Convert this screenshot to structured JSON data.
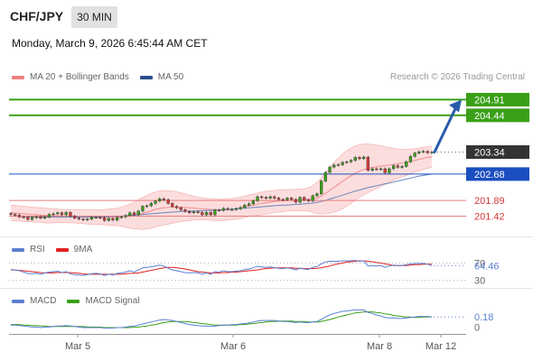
{
  "header": {
    "pair": "CHF/JPY",
    "timeframe": "30 MIN",
    "datetime": "Monday, March 9, 2026 6:45:44 AM CET",
    "copyright": "Research © 2026 Trading Central"
  },
  "legends": {
    "main": [
      {
        "label": "MA 20 + Bollinger Bands",
        "color": "#f08080"
      },
      {
        "label": "MA 50",
        "color": "#2a4d8c"
      }
    ],
    "rsi": [
      {
        "label": "RSI",
        "color": "#5b7fd1"
      },
      {
        "label": "9MA",
        "color": "#e02020"
      }
    ],
    "macd": [
      {
        "label": "MACD",
        "color": "#5b7fd1"
      },
      {
        "label": "MACD Signal",
        "color": "#3aa017"
      }
    ]
  },
  "colors": {
    "green": "#3aa017",
    "blue": "#1b4fc1",
    "red": "#d63a3a",
    "dark": "#333333",
    "bull": "#3aa017",
    "bear": "#d63a3a",
    "band": "#fbd7d7",
    "arrow": "#2a5cab"
  },
  "chart_data": [
    {
      "type": "candlestick",
      "title": "CHF/JPY 30 MIN",
      "x_ticks": [
        "Mar 5",
        "Mar 6",
        "Mar 8",
        "Mar 12"
      ],
      "ylim": [
        201.0,
        205.3
      ],
      "levels": [
        {
          "value": 204.91,
          "label": "204.91",
          "style": "green"
        },
        {
          "value": 204.44,
          "label": "204.44",
          "style": "green"
        },
        {
          "value": 203.34,
          "label": "203.34",
          "style": "dark"
        },
        {
          "value": 202.68,
          "label": "202.68",
          "style": "blue"
        },
        {
          "value": 201.89,
          "label": "201.89",
          "style": "red"
        },
        {
          "value": 201.42,
          "label": "201.42",
          "style": "red"
        }
      ],
      "closes": [
        201.47,
        201.45,
        201.4,
        201.39,
        201.32,
        201.38,
        201.4,
        201.36,
        201.4,
        201.47,
        201.49,
        201.52,
        201.46,
        201.53,
        201.42,
        201.36,
        201.33,
        201.31,
        201.33,
        201.38,
        201.38,
        201.37,
        201.29,
        201.35,
        201.3,
        201.38,
        201.4,
        201.44,
        201.52,
        201.46,
        201.57,
        201.71,
        201.73,
        201.8,
        201.87,
        201.94,
        201.91,
        201.8,
        201.71,
        201.67,
        201.61,
        201.56,
        201.52,
        201.55,
        201.53,
        201.46,
        201.53,
        201.46,
        201.6,
        201.59,
        201.65,
        201.62,
        201.62,
        201.64,
        201.68,
        201.75,
        201.79,
        201.88,
        202.0,
        201.98,
        201.96,
        202.0,
        201.96,
        201.92,
        201.91,
        201.96,
        201.92,
        201.84,
        201.98,
        201.91,
        201.88,
        202.03,
        202.09,
        202.47,
        202.73,
        202.89,
        202.95,
        202.96,
        203.03,
        203.05,
        203.09,
        203.18,
        203.14,
        203.19,
        202.79,
        202.84,
        202.82,
        202.84,
        202.72,
        202.84,
        202.93,
        202.88,
        202.91,
        203.05,
        203.21,
        203.31,
        203.35,
        203.36,
        203.32,
        203.34
      ],
      "ma20": [
        201.52,
        201.51,
        201.5,
        201.49,
        201.48,
        201.47,
        201.46,
        201.45,
        201.44,
        201.43,
        201.43,
        201.43,
        201.42,
        201.42,
        201.42,
        201.42,
        201.41,
        201.41,
        201.4,
        201.4,
        201.39,
        201.39,
        201.39,
        201.39,
        201.39,
        201.4,
        201.4,
        201.41,
        201.42,
        201.44,
        201.47,
        201.5,
        201.54,
        201.58,
        201.62,
        201.65,
        201.67,
        201.68,
        201.69,
        201.69,
        201.69,
        201.68,
        201.67,
        201.66,
        201.65,
        201.64,
        201.63,
        201.62,
        201.61,
        201.61,
        201.61,
        201.62,
        201.63,
        201.65,
        201.67,
        201.7,
        201.73,
        201.75,
        201.78,
        201.8,
        201.82,
        201.84,
        201.86,
        201.87,
        201.88,
        201.89,
        201.9,
        201.9,
        201.91,
        201.91,
        201.92,
        201.93,
        201.96,
        202.02,
        202.1,
        202.19,
        202.28,
        202.37,
        202.46,
        202.55,
        202.63,
        202.71,
        202.77,
        202.82,
        202.85,
        202.88,
        202.9,
        202.92,
        202.93,
        202.95,
        202.97,
        202.99,
        203.01,
        203.03,
        203.06,
        203.09,
        203.12,
        203.15,
        203.18,
        203.2
      ],
      "bb_upper": [
        201.75,
        201.74,
        201.73,
        201.72,
        201.7,
        201.69,
        201.68,
        201.67,
        201.66,
        201.65,
        201.64,
        201.63,
        201.62,
        201.62,
        201.62,
        201.62,
        201.62,
        201.62,
        201.62,
        201.62,
        201.61,
        201.61,
        201.62,
        201.63,
        201.64,
        201.66,
        201.69,
        201.73,
        201.78,
        201.84,
        201.91,
        201.98,
        202.04,
        202.1,
        202.14,
        202.17,
        202.18,
        202.18,
        202.17,
        202.15,
        202.12,
        202.09,
        202.05,
        202.02,
        201.99,
        201.97,
        201.95,
        201.94,
        201.93,
        201.93,
        201.93,
        201.94,
        201.95,
        201.97,
        201.99,
        202.02,
        202.05,
        202.08,
        202.11,
        202.14,
        202.16,
        202.18,
        202.19,
        202.2,
        202.21,
        202.21,
        202.22,
        202.22,
        202.23,
        202.24,
        202.27,
        202.33,
        202.43,
        202.56,
        202.71,
        202.87,
        203.02,
        203.16,
        203.28,
        203.38,
        203.46,
        203.52,
        203.56,
        203.58,
        203.58,
        203.57,
        203.55,
        203.53,
        203.5,
        203.47,
        203.45,
        203.43,
        203.42,
        203.42,
        203.43,
        203.44,
        203.46,
        203.48,
        203.5,
        203.52
      ],
      "bb_lower": [
        201.29,
        201.28,
        201.27,
        201.26,
        201.26,
        201.25,
        201.24,
        201.23,
        201.22,
        201.21,
        201.22,
        201.23,
        201.22,
        201.22,
        201.22,
        201.22,
        201.2,
        201.2,
        201.18,
        201.18,
        201.17,
        201.17,
        201.16,
        201.15,
        201.14,
        201.14,
        201.11,
        201.09,
        201.06,
        201.04,
        201.03,
        201.02,
        201.04,
        201.06,
        201.1,
        201.13,
        201.16,
        201.18,
        201.21,
        201.23,
        201.26,
        201.27,
        201.29,
        201.3,
        201.31,
        201.31,
        201.31,
        201.3,
        201.29,
        201.29,
        201.29,
        201.3,
        201.31,
        201.33,
        201.35,
        201.38,
        201.41,
        201.42,
        201.45,
        201.46,
        201.48,
        201.5,
        201.53,
        201.54,
        201.55,
        201.57,
        201.58,
        201.58,
        201.59,
        201.58,
        201.57,
        201.53,
        201.49,
        201.48,
        201.49,
        201.51,
        201.54,
        201.58,
        201.64,
        201.72,
        201.8,
        201.9,
        201.98,
        202.06,
        202.12,
        202.19,
        202.25,
        202.31,
        202.36,
        202.43,
        202.49,
        202.55,
        202.6,
        202.64,
        202.69,
        202.74,
        202.78,
        202.82,
        202.86,
        202.88
      ],
      "ma50": [
        201.42,
        201.42,
        201.41,
        201.41,
        201.41,
        201.4,
        201.4,
        201.4,
        201.39,
        201.39,
        201.39,
        201.39,
        201.39,
        201.39,
        201.39,
        201.39,
        201.39,
        201.39,
        201.39,
        201.39,
        201.39,
        201.4,
        201.4,
        201.4,
        201.41,
        201.41,
        201.42,
        201.43,
        201.44,
        201.45,
        201.46,
        201.47,
        201.48,
        201.49,
        201.5,
        201.51,
        201.52,
        201.53,
        201.54,
        201.55,
        201.56,
        201.56,
        201.57,
        201.57,
        201.58,
        201.58,
        201.59,
        201.59,
        201.6,
        201.6,
        201.61,
        201.62,
        201.63,
        201.64,
        201.65,
        201.66,
        201.67,
        201.68,
        201.69,
        201.7,
        201.71,
        201.72,
        201.73,
        201.74,
        201.75,
        201.75,
        201.76,
        201.77,
        201.78,
        201.79,
        201.8,
        201.81,
        201.83,
        201.86,
        201.89,
        201.93,
        201.97,
        202.01,
        202.05,
        202.09,
        202.13,
        202.17,
        202.2,
        202.24,
        202.27,
        202.3,
        202.33,
        202.36,
        202.39,
        202.41,
        202.44,
        202.47,
        202.5,
        202.53,
        202.56,
        202.59,
        202.62,
        202.64,
        202.66,
        202.68
      ],
      "projection": {
        "from": 203.34,
        "to": 204.91
      }
    },
    {
      "type": "line",
      "title": "RSI",
      "ylim": [
        25,
        75
      ],
      "levels": [
        {
          "value": 30,
          "label": "30"
        },
        {
          "value": 70,
          "label": "70"
        }
      ],
      "last_value_label": "64.46",
      "series": [
        {
          "name": "RSI",
          "values": [
            55,
            54,
            52,
            49,
            46,
            45,
            46,
            44,
            47,
            49,
            50,
            51,
            48,
            50,
            45,
            43,
            42,
            41,
            43,
            45,
            46,
            45,
            41,
            44,
            42,
            46,
            47,
            49,
            52,
            49,
            54,
            59,
            60,
            61,
            63,
            65,
            63,
            58,
            54,
            52,
            50,
            48,
            47,
            48,
            47,
            44,
            47,
            44,
            50,
            49,
            52,
            50,
            50,
            51,
            52,
            55,
            56,
            59,
            62,
            61,
            60,
            61,
            59,
            58,
            57,
            59,
            57,
            54,
            58,
            56,
            55,
            60,
            62,
            68,
            72,
            74,
            74,
            74,
            75,
            75,
            75,
            76,
            74,
            75,
            63,
            64,
            63,
            64,
            60,
            63,
            65,
            64,
            64,
            66,
            68,
            69,
            69,
            69,
            67,
            64
          ]
        },
        {
          "name": "9MA",
          "values": [
            54,
            54,
            53,
            52,
            51,
            50,
            49,
            48,
            47,
            47,
            47,
            48,
            48,
            48,
            48,
            47,
            46,
            45,
            44,
            44,
            44,
            44,
            44,
            44,
            44,
            44,
            44,
            45,
            46,
            46,
            47,
            49,
            51,
            53,
            55,
            57,
            59,
            60,
            60,
            59,
            58,
            56,
            54,
            52,
            50,
            49,
            48,
            47,
            47,
            47,
            48,
            48,
            49,
            49,
            50,
            51,
            52,
            53,
            54,
            56,
            57,
            58,
            59,
            59,
            59,
            59,
            59,
            58,
            58,
            57,
            57,
            57,
            58,
            59,
            61,
            63,
            66,
            68,
            70,
            72,
            73,
            74,
            75,
            75,
            74,
            73,
            71,
            70,
            68,
            66,
            64,
            64,
            64,
            64,
            65,
            66,
            66,
            67,
            67,
            67
          ]
        }
      ]
    },
    {
      "type": "line",
      "title": "MACD",
      "ylim": [
        -0.12,
        0.38
      ],
      "levels": [
        {
          "value": 0,
          "label": "0"
        }
      ],
      "last_value_label": "0.18",
      "series": [
        {
          "name": "MACD",
          "values": [
            0.02,
            0.02,
            0.01,
            0.0,
            -0.01,
            -0.02,
            -0.02,
            -0.03,
            -0.02,
            -0.02,
            -0.01,
            0.0,
            0.0,
            0.01,
            0.0,
            -0.01,
            -0.02,
            -0.03,
            -0.03,
            -0.03,
            -0.03,
            -0.03,
            -0.04,
            -0.04,
            -0.04,
            -0.03,
            -0.03,
            -0.02,
            -0.01,
            0.0,
            0.02,
            0.04,
            0.06,
            0.08,
            0.1,
            0.12,
            0.13,
            0.12,
            0.11,
            0.09,
            0.07,
            0.05,
            0.03,
            0.02,
            0.01,
            0.0,
            0.0,
            -0.01,
            0.0,
            0.01,
            0.02,
            0.02,
            0.03,
            0.03,
            0.04,
            0.05,
            0.06,
            0.08,
            0.1,
            0.11,
            0.11,
            0.11,
            0.11,
            0.1,
            0.09,
            0.09,
            0.08,
            0.07,
            0.08,
            0.07,
            0.07,
            0.08,
            0.09,
            0.13,
            0.18,
            0.22,
            0.25,
            0.27,
            0.29,
            0.3,
            0.31,
            0.32,
            0.32,
            0.32,
            0.27,
            0.25,
            0.22,
            0.2,
            0.17,
            0.16,
            0.16,
            0.15,
            0.15,
            0.16,
            0.17,
            0.18,
            0.19,
            0.19,
            0.19,
            0.18
          ]
        },
        {
          "name": "MACD Signal",
          "values": [
            0.03,
            0.03,
            0.03,
            0.02,
            0.02,
            0.01,
            0.01,
            0.0,
            0.0,
            -0.01,
            -0.01,
            -0.01,
            -0.01,
            -0.01,
            -0.01,
            -0.01,
            -0.01,
            -0.01,
            -0.02,
            -0.02,
            -0.02,
            -0.02,
            -0.03,
            -0.03,
            -0.03,
            -0.03,
            -0.03,
            -0.03,
            -0.03,
            -0.02,
            -0.02,
            -0.01,
            0.0,
            0.02,
            0.03,
            0.05,
            0.07,
            0.08,
            0.09,
            0.09,
            0.09,
            0.09,
            0.08,
            0.07,
            0.06,
            0.05,
            0.04,
            0.03,
            0.02,
            0.02,
            0.02,
            0.02,
            0.02,
            0.02,
            0.03,
            0.03,
            0.04,
            0.05,
            0.06,
            0.07,
            0.08,
            0.09,
            0.09,
            0.1,
            0.1,
            0.1,
            0.1,
            0.09,
            0.09,
            0.09,
            0.08,
            0.08,
            0.08,
            0.09,
            0.11,
            0.13,
            0.15,
            0.18,
            0.2,
            0.22,
            0.24,
            0.26,
            0.27,
            0.28,
            0.28,
            0.28,
            0.27,
            0.26,
            0.24,
            0.23,
            0.21,
            0.2,
            0.19,
            0.18,
            0.18,
            0.17,
            0.17,
            0.18,
            0.18,
            0.18
          ]
        }
      ]
    }
  ]
}
